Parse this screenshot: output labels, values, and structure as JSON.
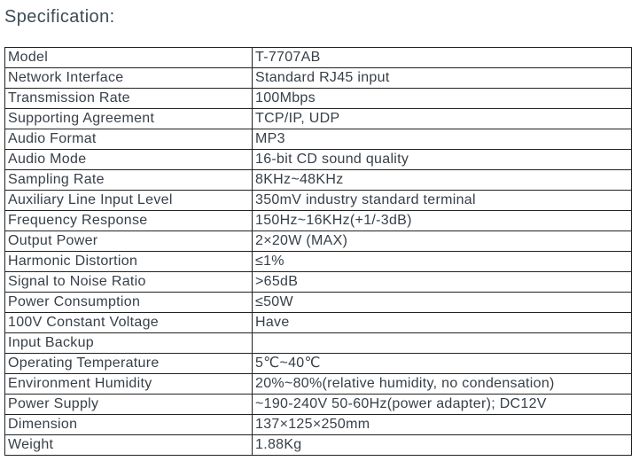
{
  "page": {
    "heading": "Specification:"
  },
  "colors": {
    "background": "#ffffff",
    "heading_text": "#3d4c56",
    "table_text": "#373f47",
    "table_border": "#222222"
  },
  "spec_table": {
    "rows": [
      {
        "label": "Model",
        "value": "T-7707AB"
      },
      {
        "label": "Network Interface",
        "value": "Standard RJ45 input"
      },
      {
        "label": "Transmission Rate",
        "value": "100Mbps"
      },
      {
        "label": "Supporting Agreement",
        "value": "TCP/IP, UDP"
      },
      {
        "label": "Audio Format",
        "value": "MP3"
      },
      {
        "label": "Audio Mode",
        "value": "16-bit CD sound quality"
      },
      {
        "label": "Sampling Rate",
        "value": "8KHz~48KHz"
      },
      {
        "label": "Auxiliary Line Input Level",
        "value": "350mV industry standard terminal"
      },
      {
        "label": "Frequency Response",
        "value": "150Hz~16KHz(+1/-3dB)"
      },
      {
        "label": "Output Power",
        "value": "2×20W (MAX)"
      },
      {
        "label": "Harmonic Distortion",
        "value": "≤1%"
      },
      {
        "label": "Signal to Noise Ratio",
        "value": ">65dB"
      },
      {
        "label": "Power Consumption",
        "value": "≤50W"
      },
      {
        "label": "100V Constant Voltage",
        "value": "Have"
      },
      {
        "label": "Input Backup",
        "value": ""
      },
      {
        "label": "Operating Temperature",
        "value": "5℃~40℃"
      },
      {
        "label": "Environment Humidity",
        "value": "20%~80%(relative humidity, no condensation)"
      },
      {
        "label": "Power Supply",
        "value": "~190-240V 50-60Hz(power adapter); DC12V"
      },
      {
        "label": "Dimension",
        "value": "137×125×250mm"
      },
      {
        "label": "Weight",
        "value": "1.88Kg"
      }
    ]
  }
}
